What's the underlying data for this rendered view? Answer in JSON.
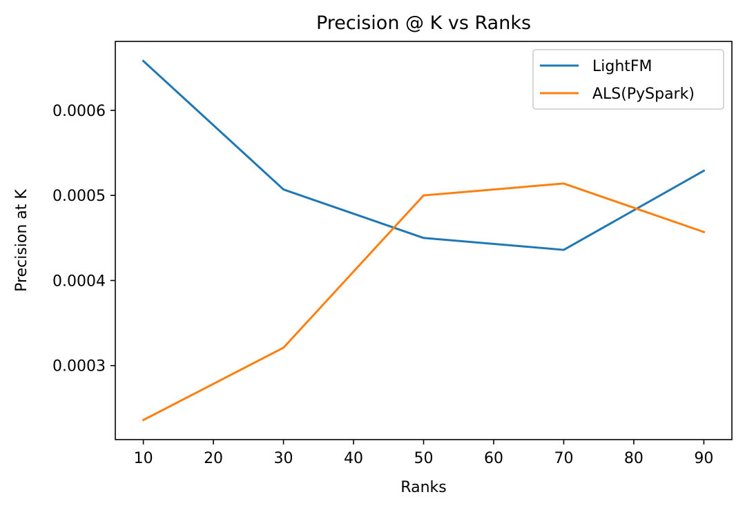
{
  "chart_data": {
    "type": "line",
    "title": "Precision @ K vs Ranks",
    "xlabel": "Ranks",
    "ylabel": "Precision at K",
    "x": [
      10,
      30,
      50,
      70,
      90
    ],
    "series": [
      {
        "name": "LightFM",
        "color": "#1f77b4",
        "values": [
          0.000658,
          0.000507,
          0.00045,
          0.000436,
          0.000529
        ]
      },
      {
        "name": "ALS(PySpark)",
        "color": "#ff7f0e",
        "values": [
          0.000236,
          0.000321,
          0.0005,
          0.000514,
          0.000457
        ]
      }
    ],
    "xlim": [
      6,
      94
    ],
    "ylim": [
      0.000213,
      0.000681
    ],
    "xticks": [
      10,
      20,
      30,
      40,
      50,
      60,
      70,
      80,
      90
    ],
    "xtick_labels": [
      "10",
      "20",
      "30",
      "40",
      "50",
      "60",
      "70",
      "80",
      "90"
    ],
    "yticks": [
      0.0003,
      0.0004,
      0.0005,
      0.0006
    ],
    "ytick_labels": [
      "0.0003",
      "0.0004",
      "0.0005",
      "0.0006"
    ],
    "grid": false,
    "legend_position": "top-right"
  }
}
